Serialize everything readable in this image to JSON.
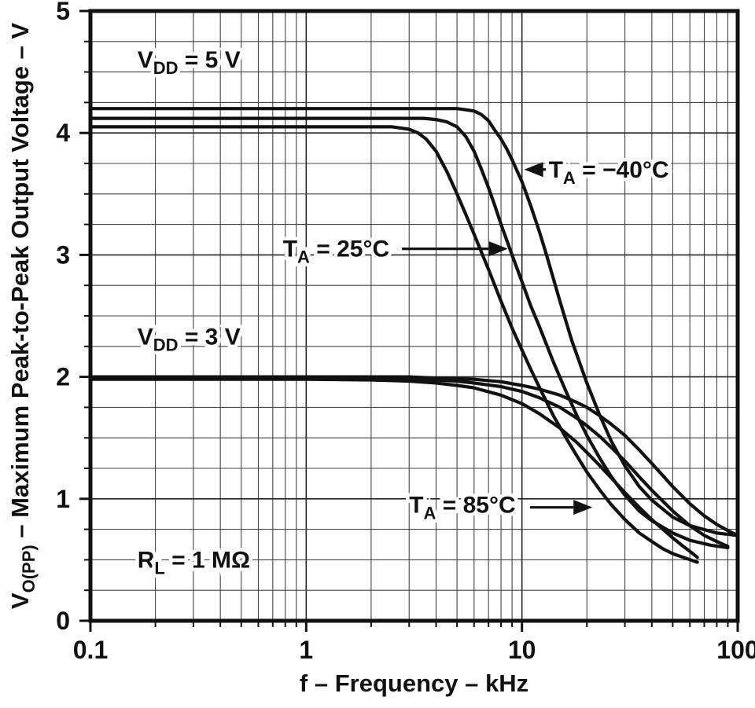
{
  "figure": {
    "background": "#ffffff",
    "ink_color": "#111111",
    "grid_minor_color": "#444444",
    "grid_major_color": "#222222"
  },
  "chart_data": {
    "type": "line",
    "title": "",
    "xlabel": "f – Frequency – kHz",
    "ylabel_parts": [
      {
        "t": "V"
      },
      {
        "t": "O(PP)",
        "sub": true
      },
      {
        "t": " – Maximum Peak-to-Peak Output Voltage – V"
      }
    ],
    "x_scale": "log",
    "xlim": [
      0.1,
      100
    ],
    "ylim": [
      0,
      5
    ],
    "x_ticks": [
      {
        "v": 0.1,
        "label": "0.1"
      },
      {
        "v": 1,
        "label": "1"
      },
      {
        "v": 10,
        "label": "10"
      },
      {
        "v": 100,
        "label": "100"
      }
    ],
    "y_ticks": [
      {
        "v": 0,
        "label": "0"
      },
      {
        "v": 1,
        "label": "1"
      },
      {
        "v": 2,
        "label": "2"
      },
      {
        "v": 3,
        "label": "3"
      },
      {
        "v": 4,
        "label": "4"
      },
      {
        "v": 5,
        "label": "5"
      }
    ],
    "y_minor_step": 0.25,
    "grid": true,
    "legend": "none",
    "series": [
      {
        "name": "vdd-5v-ta-minus40c",
        "vdd": "5 V",
        "ta": "-40°C",
        "points": [
          [
            0.1,
            4.2
          ],
          [
            1,
            4.2
          ],
          [
            2,
            4.2
          ],
          [
            3,
            4.2
          ],
          [
            4,
            4.2
          ],
          [
            5,
            4.2
          ],
          [
            5.5,
            4.19
          ],
          [
            6,
            4.18
          ],
          [
            6.5,
            4.15
          ],
          [
            7,
            4.1
          ],
          [
            7.5,
            4.02
          ],
          [
            8,
            3.95
          ],
          [
            8.5,
            3.87
          ],
          [
            9,
            3.78
          ],
          [
            10,
            3.6
          ],
          [
            11,
            3.4
          ],
          [
            12,
            3.2
          ],
          [
            13,
            3.0
          ],
          [
            15,
            2.62
          ],
          [
            17,
            2.3
          ],
          [
            20,
            1.95
          ],
          [
            23,
            1.68
          ],
          [
            26,
            1.47
          ],
          [
            30,
            1.27
          ],
          [
            35,
            1.1
          ],
          [
            40,
            0.99
          ],
          [
            50,
            0.85
          ],
          [
            60,
            0.78
          ],
          [
            80,
            0.72
          ],
          [
            100,
            0.7
          ]
        ]
      },
      {
        "name": "vdd-5v-ta-25c",
        "vdd": "5 V",
        "ta": "25°C",
        "points": [
          [
            0.1,
            4.12
          ],
          [
            1,
            4.12
          ],
          [
            2,
            4.12
          ],
          [
            3,
            4.12
          ],
          [
            3.5,
            4.12
          ],
          [
            4,
            4.11
          ],
          [
            4.5,
            4.09
          ],
          [
            5,
            4.05
          ],
          [
            5.5,
            3.97
          ],
          [
            6,
            3.85
          ],
          [
            6.5,
            3.7
          ],
          [
            7,
            3.55
          ],
          [
            7.5,
            3.4
          ],
          [
            8,
            3.25
          ],
          [
            9,
            3.0
          ],
          [
            10,
            2.78
          ],
          [
            11,
            2.58
          ],
          [
            12,
            2.42
          ],
          [
            14,
            2.12
          ],
          [
            16,
            1.88
          ],
          [
            18,
            1.68
          ],
          [
            20,
            1.52
          ],
          [
            23,
            1.33
          ],
          [
            26,
            1.18
          ],
          [
            30,
            1.03
          ],
          [
            35,
            0.9
          ],
          [
            40,
            0.82
          ],
          [
            50,
            0.72
          ],
          [
            60,
            0.66
          ],
          [
            75,
            0.62
          ],
          [
            90,
            0.6
          ]
        ]
      },
      {
        "name": "vdd-5v-ta-85c",
        "vdd": "5 V",
        "ta": "85°C",
        "points": [
          [
            0.1,
            4.05
          ],
          [
            1,
            4.05
          ],
          [
            2,
            4.05
          ],
          [
            2.5,
            4.05
          ],
          [
            3,
            4.03
          ],
          [
            3.3,
            4.0
          ],
          [
            3.6,
            3.95
          ],
          [
            4,
            3.85
          ],
          [
            4.5,
            3.68
          ],
          [
            5,
            3.5
          ],
          [
            5.5,
            3.33
          ],
          [
            6,
            3.17
          ],
          [
            6.5,
            3.02
          ],
          [
            7,
            2.88
          ],
          [
            8,
            2.62
          ],
          [
            9,
            2.4
          ],
          [
            10,
            2.22
          ],
          [
            11,
            2.06
          ],
          [
            12,
            1.92
          ],
          [
            14,
            1.68
          ],
          [
            16,
            1.5
          ],
          [
            18,
            1.35
          ],
          [
            20,
            1.22
          ],
          [
            23,
            1.07
          ],
          [
            26,
            0.95
          ],
          [
            30,
            0.83
          ],
          [
            35,
            0.72
          ],
          [
            40,
            0.65
          ],
          [
            45,
            0.59
          ],
          [
            50,
            0.55
          ],
          [
            58,
            0.51
          ],
          [
            65,
            0.48
          ]
        ]
      },
      {
        "name": "vdd-3v-ta-minus40c",
        "vdd": "3 V",
        "ta": "-40°C",
        "points": [
          [
            0.1,
            2.0
          ],
          [
            1,
            2.0
          ],
          [
            2,
            2.0
          ],
          [
            3,
            2.0
          ],
          [
            4,
            1.99
          ],
          [
            5,
            1.985
          ],
          [
            6,
            1.98
          ],
          [
            8,
            1.96
          ],
          [
            10,
            1.93
          ],
          [
            12,
            1.9
          ],
          [
            15,
            1.85
          ],
          [
            18,
            1.79
          ],
          [
            20,
            1.75
          ],
          [
            23,
            1.68
          ],
          [
            26,
            1.61
          ],
          [
            30,
            1.52
          ],
          [
            35,
            1.4
          ],
          [
            40,
            1.29
          ],
          [
            45,
            1.19
          ],
          [
            50,
            1.1
          ],
          [
            60,
            0.96
          ],
          [
            70,
            0.86
          ],
          [
            80,
            0.79
          ],
          [
            90,
            0.74
          ],
          [
            100,
            0.7
          ]
        ]
      },
      {
        "name": "vdd-3v-ta-25c",
        "vdd": "3 V",
        "ta": "25°C",
        "points": [
          [
            0.1,
            1.99
          ],
          [
            1,
            1.99
          ],
          [
            2,
            1.99
          ],
          [
            3,
            1.985
          ],
          [
            4,
            1.975
          ],
          [
            5,
            1.965
          ],
          [
            6,
            1.95
          ],
          [
            8,
            1.92
          ],
          [
            10,
            1.88
          ],
          [
            12,
            1.83
          ],
          [
            15,
            1.75
          ],
          [
            18,
            1.66
          ],
          [
            20,
            1.6
          ],
          [
            23,
            1.51
          ],
          [
            26,
            1.42
          ],
          [
            30,
            1.31
          ],
          [
            35,
            1.18
          ],
          [
            40,
            1.07
          ],
          [
            45,
            0.98
          ],
          [
            50,
            0.9
          ],
          [
            60,
            0.78
          ],
          [
            70,
            0.7
          ],
          [
            80,
            0.65
          ],
          [
            90,
            0.61
          ]
        ]
      },
      {
        "name": "vdd-3v-ta-85c",
        "vdd": "3 V",
        "ta": "85°C",
        "points": [
          [
            0.1,
            1.98
          ],
          [
            1,
            1.98
          ],
          [
            2,
            1.975
          ],
          [
            3,
            1.965
          ],
          [
            4,
            1.95
          ],
          [
            5,
            1.93
          ],
          [
            6,
            1.91
          ],
          [
            8,
            1.85
          ],
          [
            10,
            1.78
          ],
          [
            12,
            1.7
          ],
          [
            15,
            1.58
          ],
          [
            18,
            1.46
          ],
          [
            20,
            1.38
          ],
          [
            23,
            1.27
          ],
          [
            26,
            1.17
          ],
          [
            30,
            1.05
          ],
          [
            35,
            0.93
          ],
          [
            40,
            0.83
          ],
          [
            45,
            0.75
          ],
          [
            50,
            0.68
          ],
          [
            55,
            0.62
          ],
          [
            60,
            0.57
          ],
          [
            65,
            0.52
          ]
        ]
      }
    ],
    "annotations": [
      {
        "id": "vdd-5v-label",
        "x": 0.165,
        "y": 4.6,
        "parts": [
          {
            "t": "V"
          },
          {
            "t": "DD",
            "sub": true
          },
          {
            "t": " = 5 V"
          }
        ]
      },
      {
        "id": "vdd-3v-label",
        "x": 0.165,
        "y": 2.33,
        "parts": [
          {
            "t": "V"
          },
          {
            "t": "DD",
            "sub": true
          },
          {
            "t": " = 3 V"
          }
        ]
      },
      {
        "id": "rl-label",
        "x": 0.165,
        "y": 0.5,
        "parts": [
          {
            "t": "R"
          },
          {
            "t": "L",
            "sub": true
          },
          {
            "t": " = 1 MΩ"
          }
        ]
      },
      {
        "id": "ta-minus40-label",
        "x": 13.3,
        "y": 3.7,
        "parts": [
          {
            "t": "T"
          },
          {
            "t": "A",
            "sub": true
          },
          {
            "t": " = −40°C"
          }
        ],
        "arrow": {
          "x1": 12.9,
          "x2": 10.25,
          "y": 3.7
        }
      },
      {
        "id": "ta-25-label",
        "x": 0.78,
        "y": 3.05,
        "parts": [
          {
            "t": "T"
          },
          {
            "t": "A",
            "sub": true
          },
          {
            "t": " = 25°C"
          }
        ],
        "arrow": {
          "x1": 2.78,
          "x2": 8.6,
          "y": 3.05
        }
      },
      {
        "id": "ta-85-label",
        "x": 3.0,
        "y": 0.95,
        "parts": [
          {
            "t": "T"
          },
          {
            "t": "A",
            "sub": true
          },
          {
            "t": " = 85°C"
          }
        ],
        "arrow": {
          "x1": 10.9,
          "x2": 21.2,
          "y": 0.93
        }
      }
    ]
  }
}
